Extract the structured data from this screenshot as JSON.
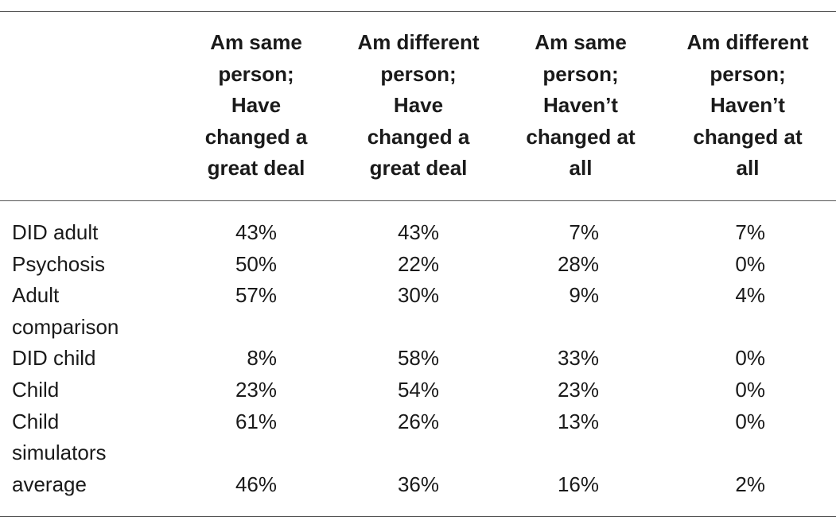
{
  "table": {
    "headers": [
      "",
      "Am same\nperson;\nHave\nchanged a\ngreat deal",
      "Am different\nperson;\nHave\nchanged a\ngreat deal",
      "Am same\nperson;\nHaven’t\nchanged at\nall",
      "Am different\nperson;\nHaven’t\nchanged at\nall"
    ],
    "rows": [
      {
        "label": "DID adult",
        "values": [
          "43%",
          "43%",
          "7%",
          "7%"
        ]
      },
      {
        "label": "Psychosis",
        "values": [
          "50%",
          "22%",
          "28%",
          "0%"
        ]
      },
      {
        "label": "Adult\ncomparison",
        "values": [
          "57%",
          "30%",
          "9%",
          "4%"
        ]
      },
      {
        "label": "DID child",
        "values": [
          "8%",
          "58%",
          "33%",
          "0%"
        ]
      },
      {
        "label": "Child",
        "values": [
          "23%",
          "54%",
          "23%",
          "0%"
        ]
      },
      {
        "label": "Child\nsimulators",
        "values": [
          "61%",
          "26%",
          "13%",
          "0%"
        ]
      },
      {
        "label": "average",
        "values": [
          "46%",
          "36%",
          "16%",
          "2%"
        ]
      }
    ]
  }
}
